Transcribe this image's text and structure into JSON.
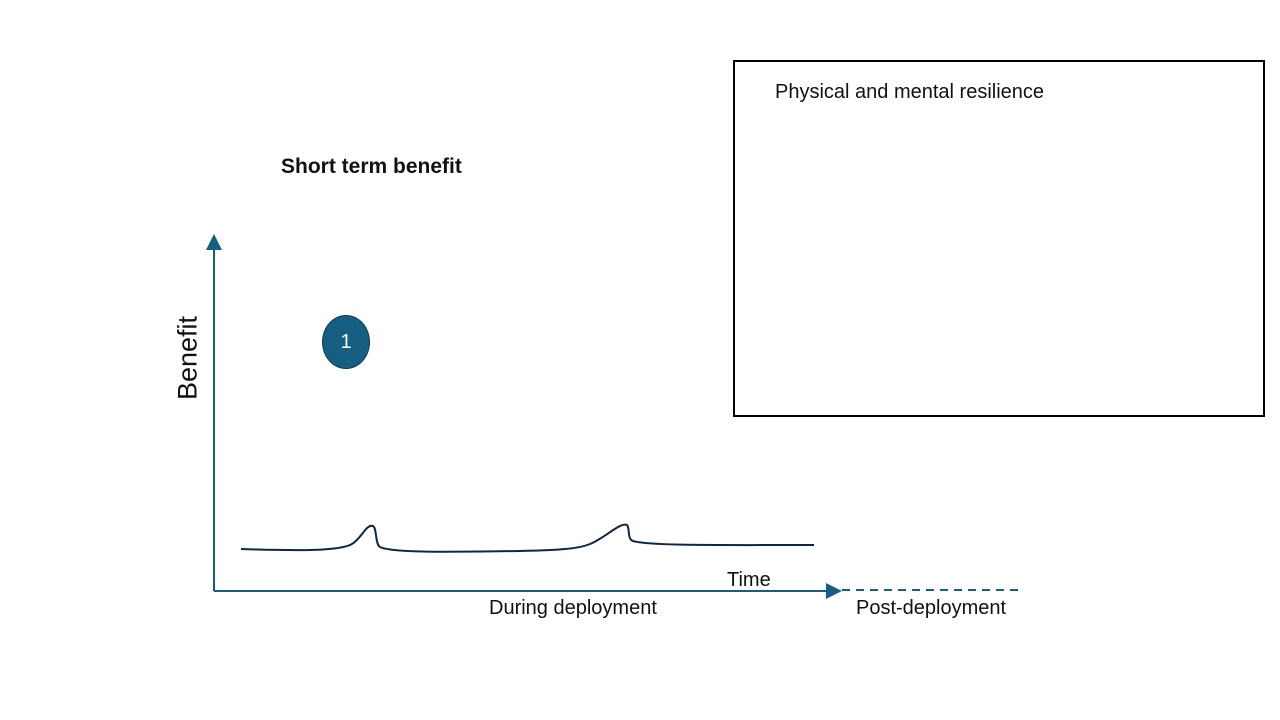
{
  "slide": {
    "title": "Short term benefit",
    "y_axis_label": "Benefit",
    "x_axis_label": "Time",
    "phase_during": "During deployment",
    "phase_post": "Post-deployment",
    "marker_label": "1",
    "box_title": "Physical and mental resilience"
  },
  "colors": {
    "axis": "#156082",
    "curve": "#0e2841",
    "marker_fill": "#156082",
    "text": "#111111"
  }
}
